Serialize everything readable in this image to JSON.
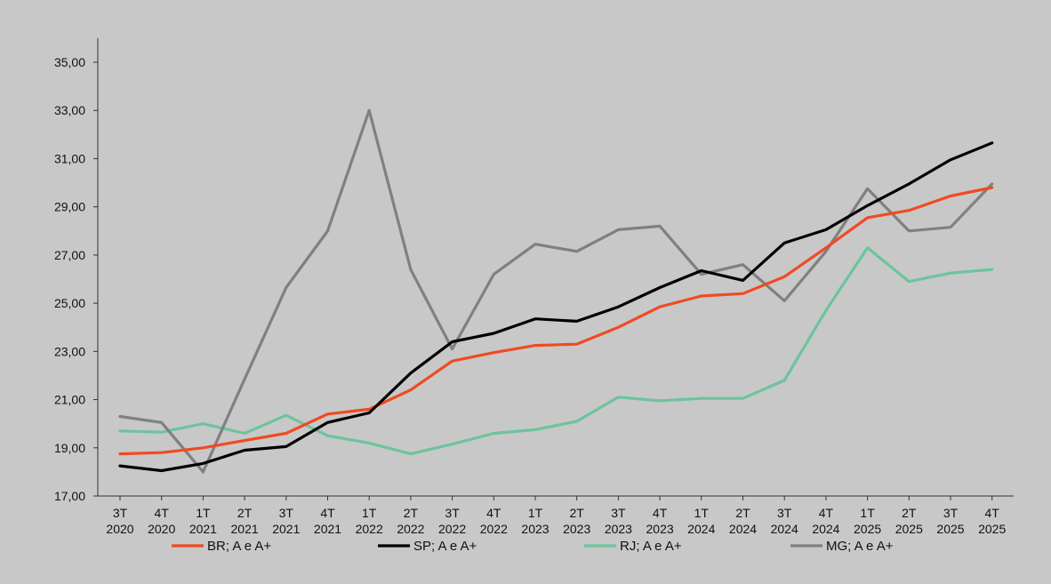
{
  "chart_data": {
    "type": "line",
    "title": "",
    "xlabel": "",
    "ylabel": "",
    "ylim": [
      17,
      35
    ],
    "yticks": [
      "17,00",
      "19,00",
      "21,00",
      "23,00",
      "25,00",
      "27,00",
      "29,00",
      "31,00",
      "33,00",
      "35,00"
    ],
    "grid": false,
    "legend_position": "bottom",
    "categories": [
      [
        "3T",
        "2020"
      ],
      [
        "4T",
        "2020"
      ],
      [
        "1T",
        "2021"
      ],
      [
        "2T",
        "2021"
      ],
      [
        "3T",
        "2021"
      ],
      [
        "4T",
        "2021"
      ],
      [
        "1T",
        "2022"
      ],
      [
        "2T",
        "2022"
      ],
      [
        "3T",
        "2022"
      ],
      [
        "4T",
        "2022"
      ],
      [
        "1T",
        "2023"
      ],
      [
        "2T",
        "2023"
      ],
      [
        "3T",
        "2023"
      ],
      [
        "4T",
        "2023"
      ],
      [
        "1T",
        "2024"
      ],
      [
        "2T",
        "2024"
      ],
      [
        "3T",
        "2024"
      ],
      [
        "4T",
        "2024"
      ],
      [
        "1T",
        "2025"
      ],
      [
        "2T",
        "2025"
      ],
      [
        "3T",
        "2025"
      ],
      [
        "4T",
        "2025"
      ]
    ],
    "series": [
      {
        "name": "BR; A e A+",
        "color": "#f04a23",
        "values": [
          18.75,
          18.8,
          19.0,
          19.3,
          19.6,
          20.4,
          20.6,
          21.4,
          22.6,
          22.95,
          23.25,
          23.3,
          24.0,
          24.85,
          25.3,
          25.4,
          26.1,
          27.3,
          28.55,
          28.85,
          29.45,
          29.8
        ]
      },
      {
        "name": "SP; A e A+",
        "color": "#000000",
        "values": [
          18.25,
          18.05,
          18.35,
          18.9,
          19.05,
          20.05,
          20.45,
          22.1,
          23.4,
          23.75,
          24.35,
          24.25,
          24.85,
          25.65,
          26.35,
          25.95,
          27.5,
          28.05,
          29.05,
          29.95,
          30.95,
          31.65
        ]
      },
      {
        "name": "RJ; A e A+",
        "color": "#6cc49c",
        "values": [
          19.7,
          19.65,
          20.0,
          19.6,
          20.35,
          19.5,
          19.2,
          18.75,
          19.15,
          19.6,
          19.75,
          20.1,
          21.1,
          20.95,
          21.05,
          21.05,
          21.8,
          24.7,
          27.3,
          25.9,
          26.25,
          26.4
        ]
      },
      {
        "name": "MG; A e A+",
        "color": "#808080",
        "values": [
          20.3,
          20.05,
          18.0,
          21.85,
          25.65,
          28.0,
          33.0,
          26.4,
          23.1,
          26.2,
          27.45,
          27.15,
          28.05,
          28.2,
          26.2,
          26.6,
          25.1,
          27.15,
          29.75,
          28.0,
          28.15,
          29.95
        ]
      }
    ]
  }
}
